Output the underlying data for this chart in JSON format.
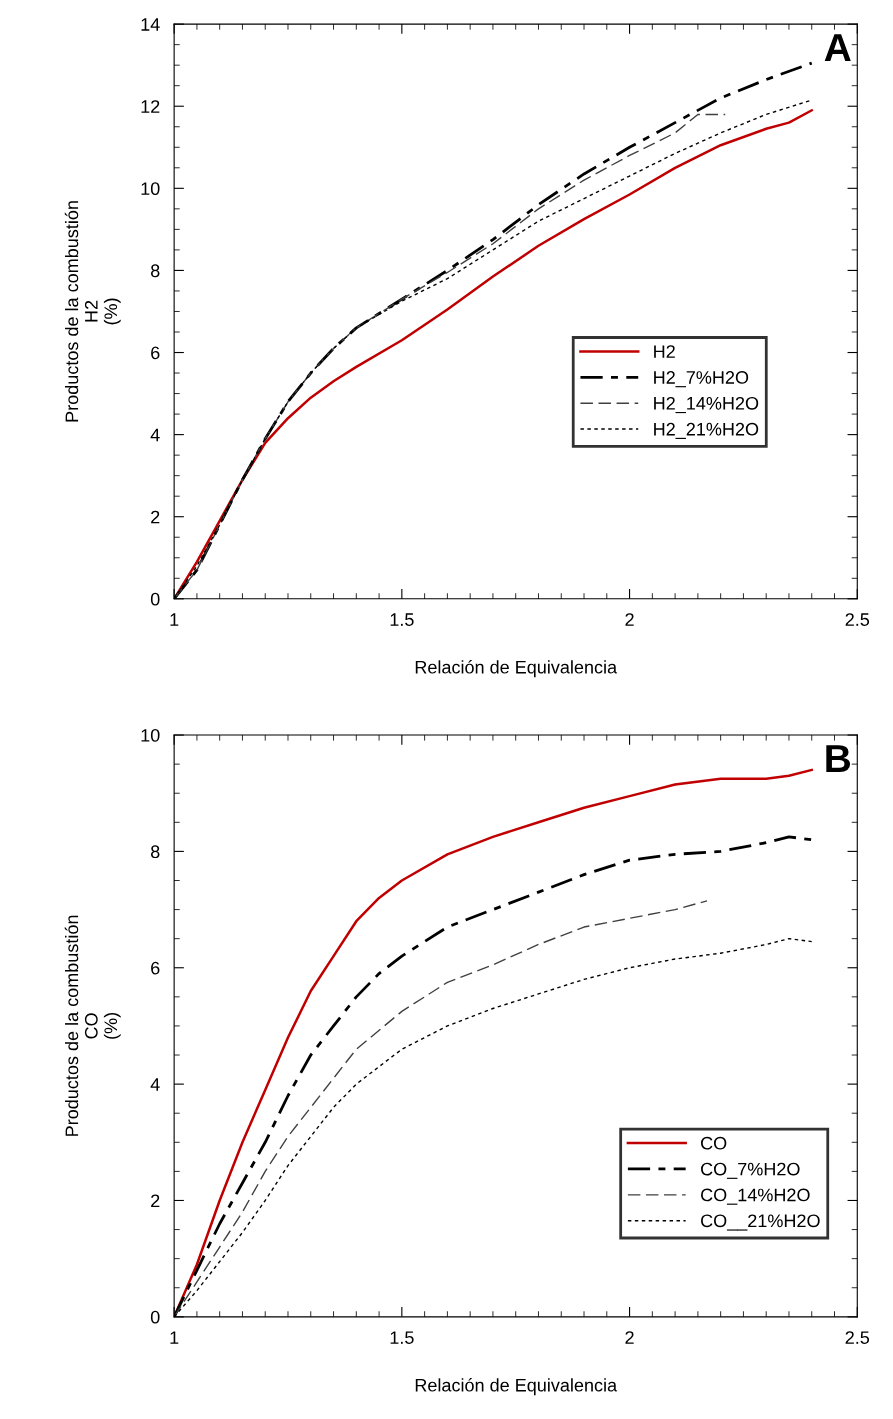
{
  "chart_data": [
    {
      "type": "line",
      "xlabel": "Relación de Equivalencia",
      "ylabel": "Productos de la combustión\nH2\n(%)",
      "annotations": [
        "A"
      ],
      "xlim": [
        1,
        2.5
      ],
      "ylim": [
        0,
        14
      ],
      "xticks": [
        1,
        1.5,
        2,
        2.5
      ],
      "yticks": [
        0,
        2,
        4,
        6,
        8,
        10,
        12,
        14
      ],
      "grid": false,
      "legend": "right",
      "marker": "none",
      "series": [
        {
          "name": "H2",
          "color": "#c00000",
          "line_style": "solid",
          "x": [
            1.0,
            1.05,
            1.1,
            1.15,
            1.2,
            1.25,
            1.3,
            1.35,
            1.4,
            1.5,
            1.6,
            1.7,
            1.8,
            1.9,
            2.0,
            2.1,
            2.2,
            2.3,
            2.35,
            2.4
          ],
          "values": [
            0,
            0.9,
            1.9,
            2.9,
            3.8,
            4.4,
            4.9,
            5.3,
            5.65,
            6.3,
            7.05,
            7.85,
            8.6,
            9.25,
            9.85,
            10.5,
            11.05,
            11.45,
            11.6,
            11.9
          ]
        },
        {
          "name": "H2_7%H2O",
          "color": "#000000",
          "line_style": "dashdot",
          "x": [
            1.0,
            1.05,
            1.1,
            1.15,
            1.2,
            1.25,
            1.3,
            1.35,
            1.4,
            1.5,
            1.6,
            1.7,
            1.8,
            1.9,
            2.0,
            2.1,
            2.2,
            2.3,
            2.4
          ],
          "values": [
            0,
            0.7,
            1.8,
            2.9,
            3.9,
            4.8,
            5.5,
            6.1,
            6.6,
            7.3,
            8.0,
            8.75,
            9.6,
            10.35,
            11.0,
            11.6,
            12.2,
            12.65,
            13.05
          ]
        },
        {
          "name": "H2_14%H2O",
          "color": "#404040",
          "line_style": "dashed",
          "x": [
            1.0,
            1.05,
            1.1,
            1.15,
            1.2,
            1.25,
            1.3,
            1.35,
            1.4,
            1.5,
            1.6,
            1.7,
            1.8,
            1.9,
            2.0,
            2.1,
            2.15,
            2.21
          ],
          "values": [
            0,
            0.7,
            1.8,
            2.9,
            3.9,
            4.8,
            5.5,
            6.1,
            6.6,
            7.3,
            7.95,
            8.65,
            9.5,
            10.2,
            10.8,
            11.35,
            11.8,
            11.8
          ]
        },
        {
          "name": "H2_21%H2O",
          "color": "#000000",
          "line_style": "dotted",
          "x": [
            1.0,
            1.05,
            1.1,
            1.15,
            1.2,
            1.25,
            1.3,
            1.35,
            1.4,
            1.5,
            1.6,
            1.7,
            1.8,
            1.9,
            2.0,
            2.1,
            2.2,
            2.3,
            2.4
          ],
          "values": [
            0,
            0.8,
            1.8,
            2.9,
            3.9,
            4.8,
            5.5,
            6.1,
            6.6,
            7.25,
            7.8,
            8.5,
            9.2,
            9.75,
            10.3,
            10.85,
            11.35,
            11.8,
            12.15
          ]
        }
      ]
    },
    {
      "type": "line",
      "xlabel": "Relación de Equivalencia",
      "ylabel": "Productos de la combustión\nCO\n(%)",
      "annotations": [
        "B"
      ],
      "xlim": [
        1,
        2.5
      ],
      "ylim": [
        0,
        10
      ],
      "xticks": [
        1,
        1.5,
        2,
        2.5
      ],
      "yticks": [
        0,
        2,
        4,
        6,
        8,
        10
      ],
      "grid": false,
      "legend": "lower right",
      "marker": "none",
      "series": [
        {
          "name": "CO",
          "color": "#c00000",
          "line_style": "solid",
          "x": [
            1.0,
            1.05,
            1.1,
            1.15,
            1.2,
            1.25,
            1.3,
            1.35,
            1.4,
            1.45,
            1.5,
            1.6,
            1.7,
            1.8,
            1.9,
            2.0,
            2.1,
            2.2,
            2.3,
            2.35,
            2.4
          ],
          "values": [
            0,
            0.9,
            2.0,
            3.0,
            3.9,
            4.8,
            5.6,
            6.2,
            6.8,
            7.2,
            7.5,
            7.95,
            8.25,
            8.5,
            8.75,
            8.95,
            9.15,
            9.25,
            9.25,
            9.3,
            9.4
          ]
        },
        {
          "name": "CO_7%H2O",
          "color": "#000000",
          "line_style": "dashdot",
          "x": [
            1.0,
            1.05,
            1.1,
            1.15,
            1.2,
            1.25,
            1.3,
            1.35,
            1.4,
            1.45,
            1.5,
            1.6,
            1.7,
            1.8,
            1.9,
            2.0,
            2.1,
            2.2,
            2.3,
            2.35,
            2.4
          ],
          "values": [
            0,
            0.8,
            1.6,
            2.3,
            3.0,
            3.8,
            4.5,
            5.0,
            5.5,
            5.9,
            6.2,
            6.7,
            7.0,
            7.3,
            7.6,
            7.85,
            7.95,
            8.0,
            8.15,
            8.25,
            8.2
          ]
        },
        {
          "name": "CO_14%H2O",
          "color": "#404040",
          "line_style": "dashed",
          "x": [
            1.0,
            1.05,
            1.1,
            1.15,
            1.2,
            1.25,
            1.3,
            1.35,
            1.4,
            1.5,
            1.6,
            1.7,
            1.8,
            1.9,
            2.0,
            2.1,
            2.17
          ],
          "values": [
            0,
            0.6,
            1.2,
            1.8,
            2.5,
            3.1,
            3.6,
            4.1,
            4.6,
            5.25,
            5.75,
            6.05,
            6.4,
            6.7,
            6.85,
            7.0,
            7.15
          ]
        },
        {
          "name": "CO__21%H2O",
          "color": "#000000",
          "line_style": "dotted",
          "x": [
            1.0,
            1.05,
            1.1,
            1.15,
            1.2,
            1.25,
            1.3,
            1.35,
            1.4,
            1.5,
            1.6,
            1.7,
            1.8,
            1.9,
            2.0,
            2.1,
            2.2,
            2.3,
            2.35,
            2.4
          ],
          "values": [
            0,
            0.45,
            0.95,
            1.45,
            2.0,
            2.6,
            3.1,
            3.6,
            4.0,
            4.6,
            5.0,
            5.3,
            5.55,
            5.8,
            6.0,
            6.15,
            6.25,
            6.4,
            6.5,
            6.45
          ]
        }
      ]
    }
  ]
}
